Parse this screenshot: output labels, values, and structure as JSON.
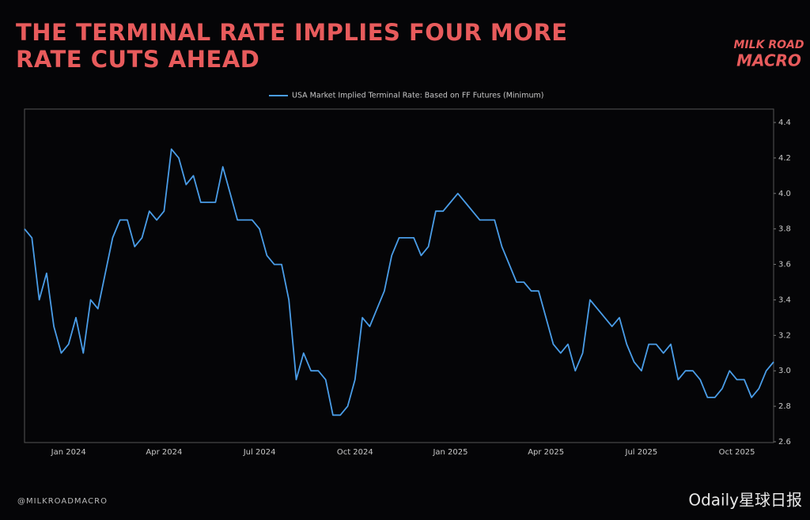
{
  "chart_data": {
    "type": "line",
    "title": "THE TERMINAL RATE IMPLIES FOUR MORE RATE CUTS AHEAD",
    "logo": [
      "MILK ROAD",
      "MACRO"
    ],
    "footer": "@MILKROADMACRO",
    "watermark": "Odaily星球日报",
    "categories": [
      null,
      null,
      null,
      null,
      null,
      null,
      "Jan 2024",
      null,
      null,
      null,
      null,
      null,
      null,
      null,
      null,
      null,
      null,
      null,
      null,
      "Apr 2024",
      null,
      null,
      null,
      null,
      null,
      null,
      null,
      null,
      null,
      null,
      null,
      null,
      "Jul 2024",
      null,
      null,
      null,
      null,
      null,
      null,
      null,
      null,
      null,
      null,
      null,
      null,
      "Oct 2024",
      null,
      null,
      null,
      null,
      null,
      null,
      null,
      null,
      null,
      null,
      null,
      null,
      "Jan 2025",
      null,
      null,
      null,
      null,
      null,
      null,
      null,
      null,
      null,
      null,
      null,
      null,
      "Apr 2025",
      null,
      null,
      null,
      null,
      null,
      null,
      null,
      null,
      null,
      null,
      null,
      null,
      "Jul 2025",
      null,
      null,
      null,
      null,
      null,
      null,
      null,
      null,
      null,
      null,
      null,
      null,
      "Oct 2025",
      null,
      null,
      null,
      null,
      null
    ],
    "series": [
      {
        "name": "USA Market Implied Terminal Rate: Based on FF Futures (Minimum)",
        "color": "#4a9de8",
        "values": [
          3.8,
          3.75,
          3.4,
          3.55,
          3.25,
          3.1,
          3.15,
          3.3,
          3.1,
          3.4,
          3.35,
          3.55,
          3.75,
          3.85,
          3.85,
          3.7,
          3.75,
          3.9,
          3.85,
          3.9,
          4.25,
          4.2,
          4.05,
          4.1,
          3.95,
          3.95,
          3.95,
          4.15,
          4,
          3.85,
          3.85,
          3.85,
          3.8,
          3.65,
          3.6,
          3.6,
          3.4,
          2.95,
          3.1,
          3,
          3,
          2.95,
          2.75,
          2.75,
          2.8,
          2.95,
          3.3,
          3.25,
          3.35,
          3.45,
          3.65,
          3.75,
          3.75,
          3.75,
          3.65,
          3.7,
          3.9,
          3.9,
          3.95,
          4,
          3.95,
          3.9,
          3.85,
          3.85,
          3.85,
          3.7,
          3.6,
          3.5,
          3.5,
          3.45,
          3.45,
          3.3,
          3.15,
          3.1,
          3.15,
          3,
          3.1,
          3.4,
          3.35,
          3.3,
          3.25,
          3.3,
          3.15,
          3.05,
          3,
          3.15,
          3.15,
          3.1,
          3.15,
          2.95,
          3,
          3,
          2.95,
          2.85,
          2.85,
          2.9,
          3,
          2.95,
          2.95,
          2.85,
          2.9,
          3,
          3.05
        ]
      }
    ],
    "ylim": [
      2.6,
      4.4
    ],
    "yticks": [
      2.6,
      2.8,
      {
        "value": 3,
        "label": "3.0"
      },
      3.2,
      3.4,
      3.6,
      3.8,
      {
        "value": 4,
        "label": "4.0"
      },
      4.2,
      4.4
    ],
    "y_axis_side": "right"
  }
}
